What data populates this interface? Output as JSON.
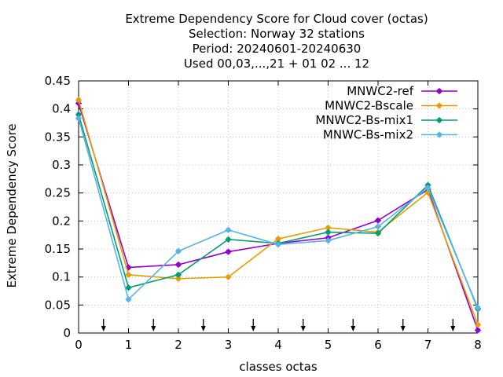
{
  "chart_data": {
    "type": "line",
    "title_lines": [
      "Extreme Dependency Score  for Cloud cover (octas)",
      "Selection: Norway     32 stations",
      "Period: 20240601-20240630",
      "Used 00,03,...,21 + 01 02 ... 12"
    ],
    "xlabel": "classes octas",
    "ylabel": "Extreme Dependency Score",
    "xlim": [
      0,
      8
    ],
    "ylim": [
      0,
      0.45
    ],
    "x_ticks": [
      "0",
      "1",
      "2",
      "3",
      "4",
      "5",
      "6",
      "7",
      "8"
    ],
    "y_ticks": [
      "0",
      "0.05",
      "0.1",
      "0.15",
      "0.2",
      "0.25",
      "0.3",
      "0.35",
      "0.4",
      "0.45"
    ],
    "grid": true,
    "legend_position": "top-right",
    "arrow_markers_x": [
      0.5,
      1.5,
      2.5,
      3.5,
      4.5,
      5.5,
      6.5,
      7.5
    ],
    "x": [
      0,
      1,
      2,
      3,
      4,
      5,
      6,
      7,
      8
    ],
    "series": [
      {
        "name": "MNWC2-ref",
        "color": "#9400d3",
        "values": [
          0.41,
          0.117,
          0.122,
          0.145,
          0.16,
          0.17,
          0.201,
          0.256,
          0.005
        ]
      },
      {
        "name": "MNWC2-Bscale",
        "color": "#e69f00",
        "values": [
          0.416,
          0.104,
          0.097,
          0.1,
          0.168,
          0.188,
          0.18,
          0.251,
          0.015
        ]
      },
      {
        "name": "MNWC2-Bs-mix1",
        "color": "#009e73",
        "values": [
          0.39,
          0.081,
          0.104,
          0.167,
          0.16,
          0.18,
          0.178,
          0.264,
          0.043
        ]
      },
      {
        "name": "MNWC-Bs-mix2",
        "color": "#56b4e9",
        "values": [
          0.383,
          0.06,
          0.146,
          0.184,
          0.158,
          0.165,
          0.19,
          0.259,
          0.045
        ]
      }
    ]
  }
}
